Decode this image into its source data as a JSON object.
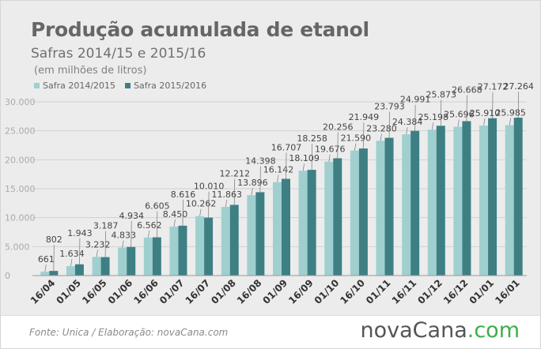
{
  "header": {
    "title": "Produção acumulada de etanol",
    "subtitle": "Safras 2014/15 e 2015/16",
    "units": "(em milhões de litros)"
  },
  "footer": {
    "source": "Fonte:  Unica  / Elaboração:  novaCana.com",
    "logo_main": "novaCana",
    "logo_suffix": ".com"
  },
  "colors": {
    "series_2014": "#9fd0cf",
    "series_2015": "#3e7f84",
    "grid": "#d2d2d2",
    "axis_text": "#aaaaaa"
  },
  "chart_data": {
    "type": "bar",
    "categories": [
      "16/04",
      "01/05",
      "16/05",
      "01/06",
      "16/06",
      "01/07",
      "16/07",
      "01/08",
      "16/08",
      "01/09",
      "16/09",
      "01/10",
      "16/10",
      "01/11",
      "16/11",
      "01/12",
      "16/12",
      "01/01",
      "16/01"
    ],
    "series": [
      {
        "name": "Safra 2014/2015",
        "values": [
          661,
          1634,
          3232,
          4833,
          6562,
          8450,
          10262,
          11863,
          13896,
          16142,
          18109,
          19676,
          21590,
          23280,
          24384,
          25198,
          25696,
          25910,
          25985
        ],
        "labels": [
          "661",
          "1.634",
          "3.232",
          "4.833",
          "6.562",
          "8.450",
          "10.262",
          "11.863",
          "13.896",
          "16.142",
          "18.109",
          "19.676",
          "21.590",
          "23.280",
          "24.384",
          "25.198",
          "25.696",
          "25.910",
          "25.985"
        ]
      },
      {
        "name": "Safra 2015/2016",
        "values": [
          802,
          1943,
          3187,
          4934,
          6605,
          8616,
          10010,
          12212,
          14398,
          16707,
          18258,
          20256,
          21949,
          23793,
          24991,
          25873,
          26668,
          27172,
          27264
        ],
        "labels": [
          "802",
          "1.943",
          "3.187",
          "4.934",
          "6.605",
          "8.616",
          "10.010",
          "12.212",
          "14.398",
          "16.707",
          "18.258",
          "20.256",
          "21.949",
          "23.793",
          "24.991",
          "25.873",
          "26.668",
          "27.172",
          "27.264"
        ]
      }
    ],
    "yticks": [
      0,
      5000,
      10000,
      15000,
      20000,
      25000,
      30000
    ],
    "ytick_labels": [
      "0",
      "5.000",
      "10.000",
      "15.000",
      "20.000",
      "25.000",
      "30.000"
    ],
    "ylim": [
      0,
      30000
    ],
    "grid": true,
    "legend_position": "top-left"
  }
}
